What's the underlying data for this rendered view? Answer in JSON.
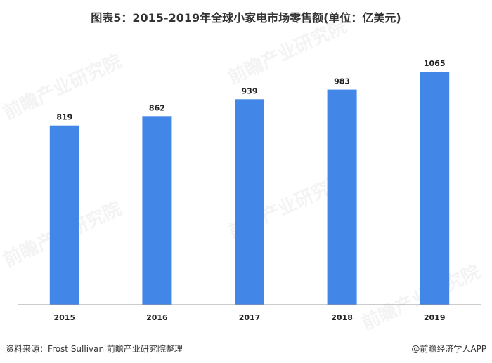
{
  "title": "图表5：2015-2019年全球小家电市场零售额(单位：亿美元)",
  "footer": {
    "source": "资料来源：Frost Sullivan 前瞻产业研究院整理",
    "brand": "@前瞻经济学人APP"
  },
  "watermark": "前瞻产业研究院",
  "colors": {
    "bar": "#4286E8",
    "axis": "#999999"
  },
  "chart_data": {
    "type": "bar",
    "categories": [
      "2015",
      "2016",
      "2017",
      "2018",
      "2019"
    ],
    "values": [
      819,
      862,
      939,
      983,
      1065
    ],
    "title": "图表5：2015-2019年全球小家电市场零售额(单位：亿美元)",
    "xlabel": "",
    "ylabel": "",
    "ylim": [
      0,
      1110
    ],
    "grid": false,
    "legend": "none"
  }
}
